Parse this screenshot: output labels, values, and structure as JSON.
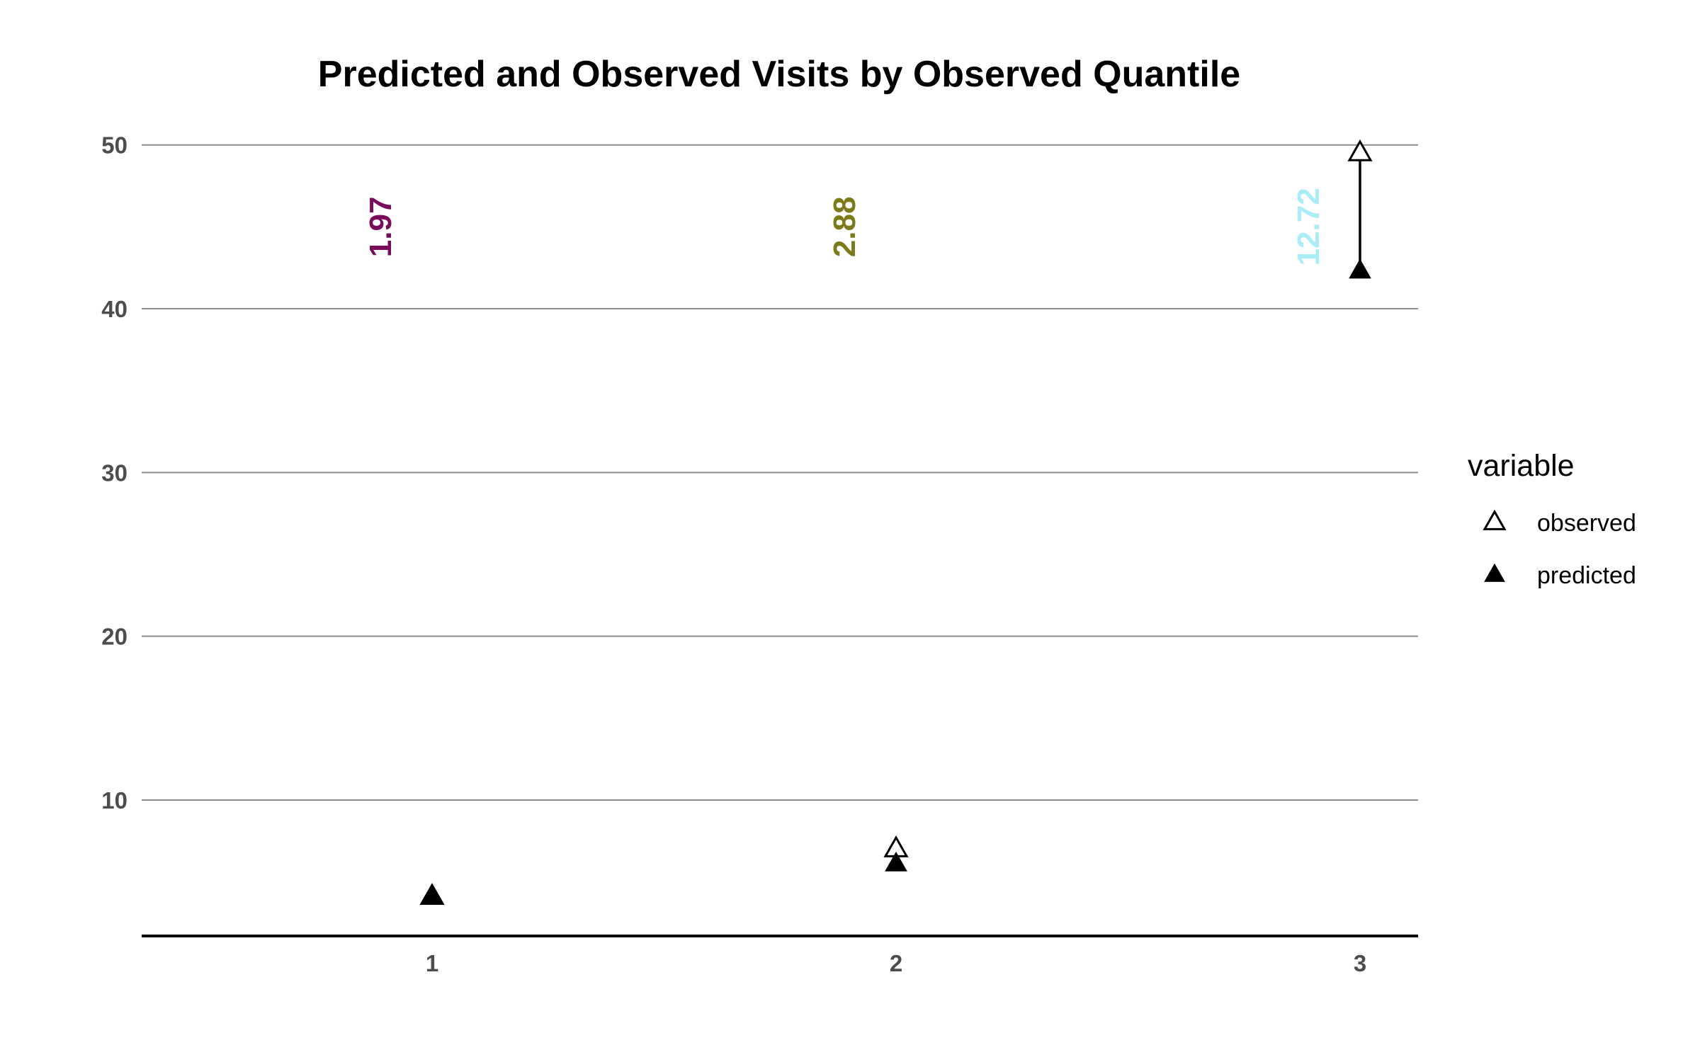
{
  "chart_data": {
    "type": "scatter",
    "title": "Predicted and Observed Visits by Observed Quantile",
    "xlabel": "",
    "ylabel": "",
    "categories": [
      "1",
      "2",
      "3"
    ],
    "x_ticks": [
      "1",
      "2",
      "3"
    ],
    "y_ticks": [
      "10",
      "20",
      "30",
      "40",
      "50"
    ],
    "ylim": [
      1.7,
      51.5
    ],
    "grid": true,
    "series": [
      {
        "name": "observed",
        "marker": "open-triangle",
        "values": [
          4.1,
          7.0,
          49.5
        ]
      },
      {
        "name": "predicted",
        "marker": "filled-triangle",
        "values": [
          4.1,
          6.1,
          42.3
        ]
      }
    ],
    "annotations": [
      {
        "x": "1",
        "y": 45.0,
        "text": "1.97",
        "color": "#7a0a5a"
      },
      {
        "x": "2",
        "y": 45.0,
        "text": "2.88",
        "color": "#7d7a1a"
      },
      {
        "x": "3",
        "y": 45.0,
        "text": "12.72",
        "color": "#a9edf8"
      }
    ],
    "legend": {
      "title": "variable",
      "placement": "right",
      "entries": [
        "observed",
        "predicted"
      ]
    }
  }
}
